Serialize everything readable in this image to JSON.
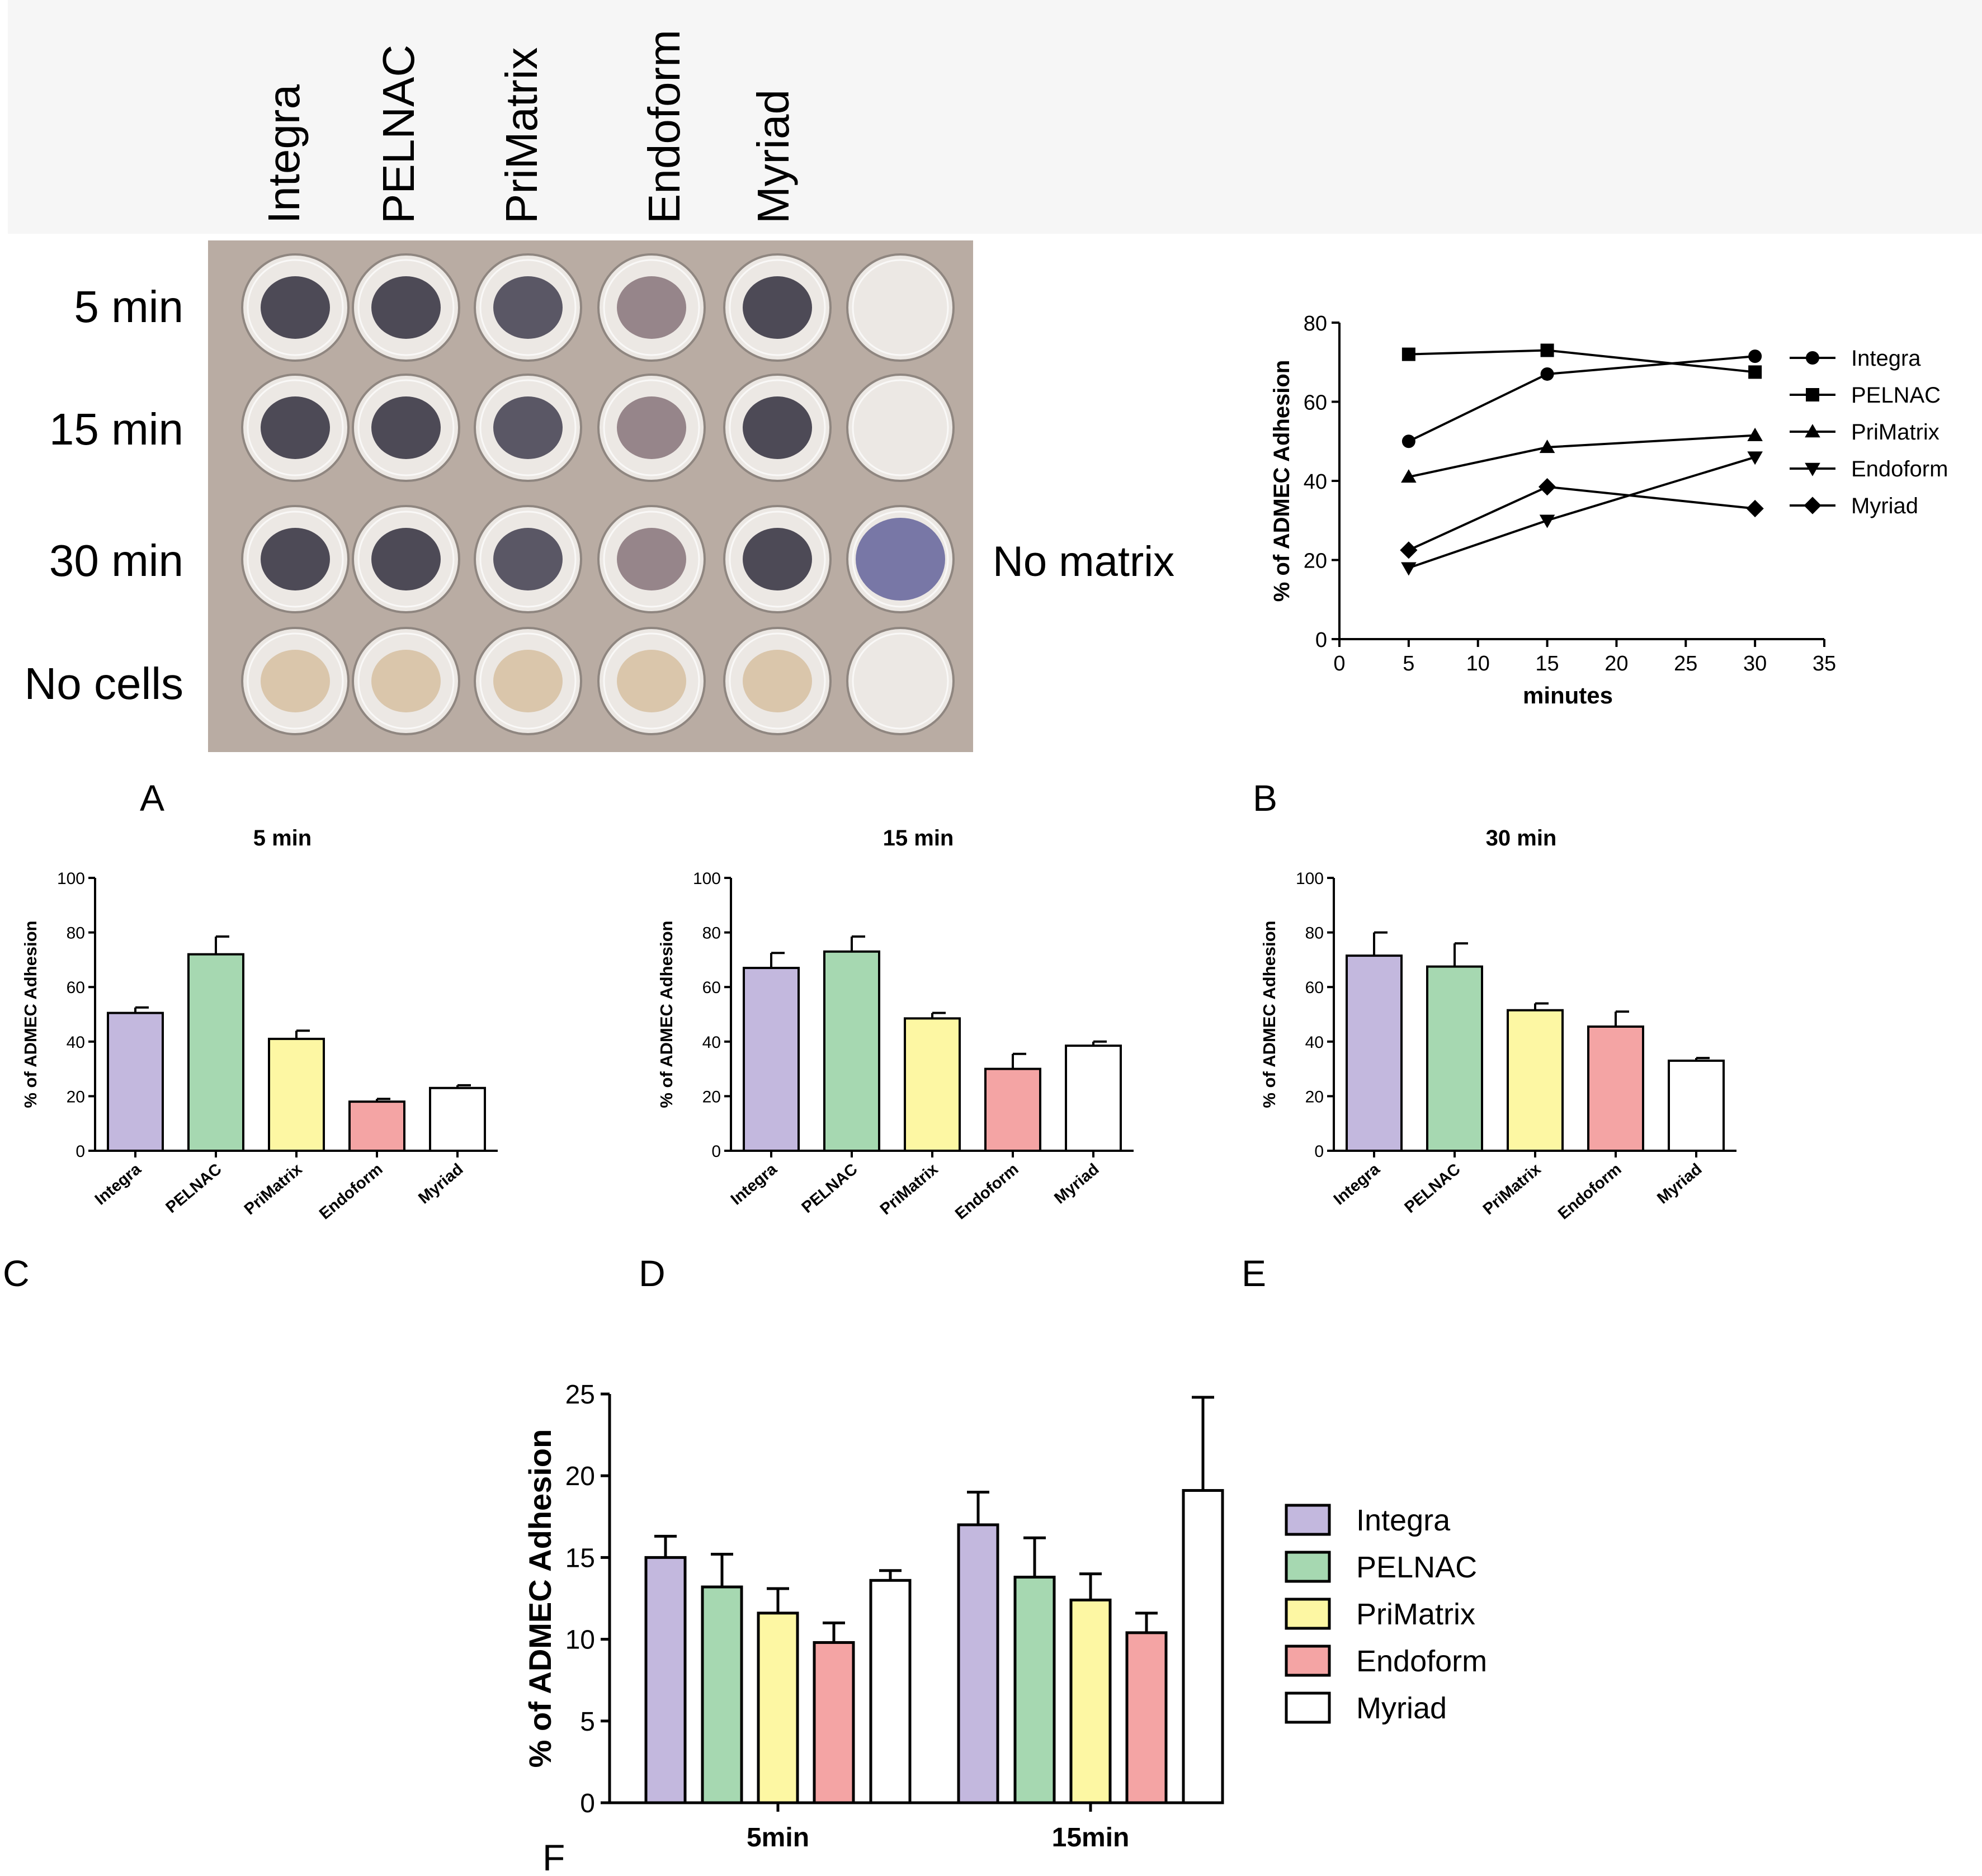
{
  "panelA": {
    "letter": "A",
    "matrices": [
      "Integra",
      "PELNAC",
      "PriMatrix",
      "Endoform",
      "Myriad"
    ],
    "rows": [
      "5 min",
      "15 min",
      "30 min",
      "No cells"
    ],
    "no_matrix_label": "No matrix",
    "colors": {
      "plate_bg": "#b9aca3",
      "stained": "#3c3846",
      "nocells": "#d8c2a4",
      "empty": "#d6d1cd",
      "nomatrix_stained": "#6c6a9e"
    }
  },
  "chart_data": [
    {
      "id": "B",
      "letter": "B",
      "type": "line",
      "title": "",
      "xlabel": "minutes",
      "ylabel": "% of ADMEC Adhesion",
      "xlim": [
        0,
        35
      ],
      "ylim": [
        0,
        80
      ],
      "xticks": [
        0,
        5,
        10,
        15,
        20,
        25,
        30,
        35
      ],
      "yticks": [
        0,
        20,
        40,
        60,
        80
      ],
      "x": [
        5,
        15,
        30
      ],
      "series": [
        {
          "name": "Integra",
          "marker": "circle",
          "values": [
            50,
            67,
            71.5
          ]
        },
        {
          "name": "PELNAC",
          "marker": "square",
          "values": [
            72,
            73,
            67.5
          ]
        },
        {
          "name": "PriMatrix",
          "marker": "triangle-up",
          "values": [
            41,
            48.5,
            51.5
          ]
        },
        {
          "name": "Endoform",
          "marker": "triangle-down",
          "values": [
            18,
            30,
            46
          ]
        },
        {
          "name": "Myriad",
          "marker": "diamond",
          "values": [
            22.5,
            38.5,
            33
          ]
        }
      ],
      "legend": "right"
    },
    {
      "id": "C",
      "letter": "C",
      "type": "bar",
      "title": "5 min",
      "xlabel": "",
      "ylabel": "% of ADMEC Adhesion",
      "ylim": [
        0,
        100
      ],
      "yticks": [
        0,
        20,
        40,
        60,
        80,
        100
      ],
      "categories": [
        "Integra",
        "PELNAC",
        "PriMatrix",
        "Endoform",
        "Myriad"
      ],
      "values": [
        50.5,
        72,
        41,
        18,
        23
      ],
      "errors": [
        2,
        6.5,
        3,
        1,
        1
      ],
      "colors": [
        "#c3b8de",
        "#a6d8b1",
        "#fdf7a3",
        "#f4a4a4",
        "#ffffff"
      ]
    },
    {
      "id": "D",
      "letter": "D",
      "type": "bar",
      "title": "15 min",
      "xlabel": "",
      "ylabel": "% of ADMEC Adhesion",
      "ylim": [
        0,
        100
      ],
      "yticks": [
        0,
        20,
        40,
        60,
        80,
        100
      ],
      "categories": [
        "Integra",
        "PELNAC",
        "PriMatrix",
        "Endoform",
        "Myriad"
      ],
      "values": [
        67,
        73,
        48.5,
        30,
        38.5
      ],
      "errors": [
        5.5,
        5.5,
        2,
        5.5,
        1.5
      ],
      "colors": [
        "#c3b8de",
        "#a6d8b1",
        "#fdf7a3",
        "#f4a4a4",
        "#ffffff"
      ]
    },
    {
      "id": "E",
      "letter": "E",
      "type": "bar",
      "title": "30 min",
      "xlabel": "",
      "ylabel": "% of ADMEC Adhesion",
      "ylim": [
        0,
        100
      ],
      "yticks": [
        0,
        20,
        40,
        60,
        80,
        100
      ],
      "categories": [
        "Integra",
        "PELNAC",
        "PriMatrix",
        "Endoform",
        "Myriad"
      ],
      "values": [
        71.5,
        67.5,
        51.5,
        45.5,
        33
      ],
      "errors": [
        8.5,
        8.5,
        2.5,
        5.5,
        1
      ],
      "colors": [
        "#c3b8de",
        "#a6d8b1",
        "#fdf7a3",
        "#f4a4a4",
        "#ffffff"
      ]
    },
    {
      "id": "F",
      "letter": "F",
      "type": "bar",
      "title": "",
      "xlabel": "",
      "ylabel": "% of ADMEC Adhesion",
      "ylim": [
        0,
        25
      ],
      "yticks": [
        0,
        5,
        10,
        15,
        20,
        25
      ],
      "categories": [
        "5min",
        "15min"
      ],
      "series": [
        {
          "name": "Integra",
          "color": "#c3b8de",
          "values": [
            15,
            17
          ],
          "errors": [
            1.3,
            2
          ]
        },
        {
          "name": "PELNAC",
          "color": "#a6d8b1",
          "values": [
            13.2,
            13.8
          ],
          "errors": [
            2,
            2.4
          ]
        },
        {
          "name": "PriMatrix",
          "color": "#fdf7a3",
          "values": [
            11.6,
            12.4
          ],
          "errors": [
            1.5,
            1.6
          ]
        },
        {
          "name": "Endoform",
          "color": "#f4a4a4",
          "values": [
            9.8,
            10.4
          ],
          "errors": [
            1.2,
            1.2
          ]
        },
        {
          "name": "Myriad",
          "color": "#ffffff",
          "values": [
            13.6,
            19.1
          ],
          "errors": [
            0.6,
            5.7
          ]
        }
      ],
      "legend": "right"
    }
  ]
}
